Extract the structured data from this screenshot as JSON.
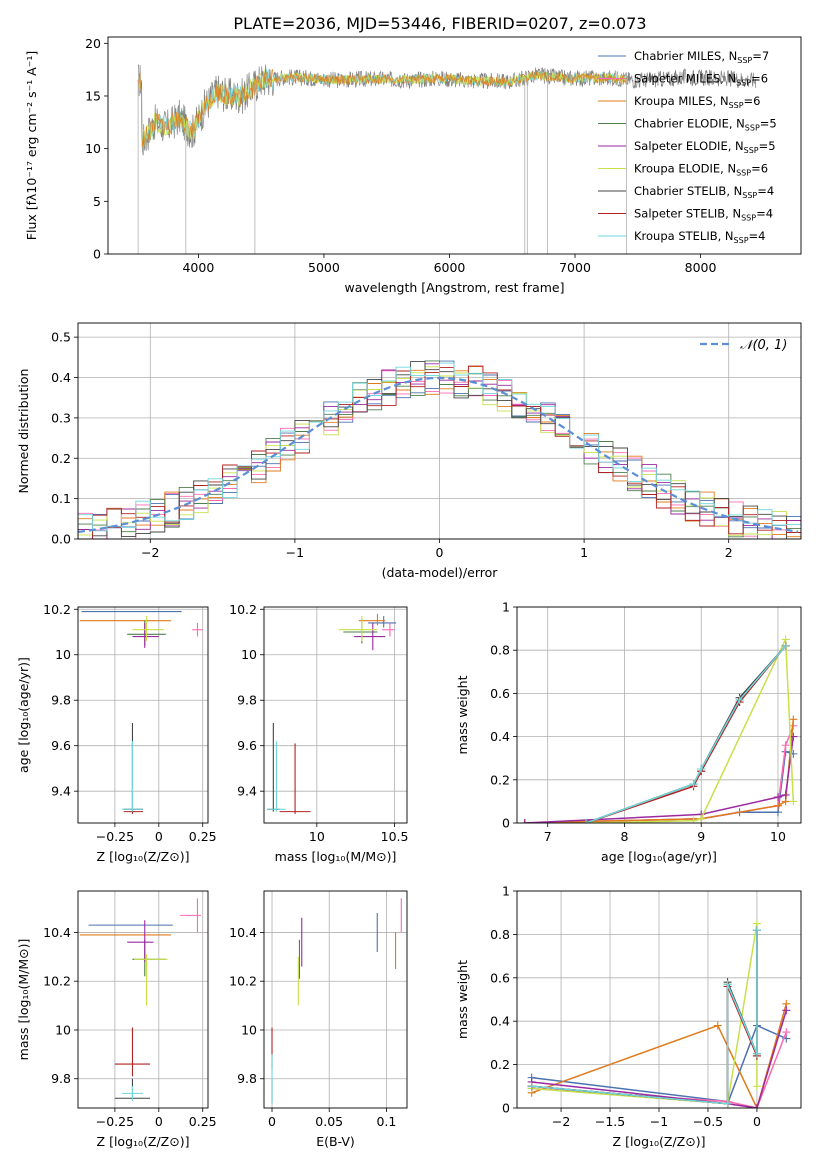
{
  "figure_title": "PLATE=2036, MJD=53446, FIBERID=0207, z=0.073",
  "colors": [
    "#4c72b0",
    "#ff69b4",
    "#e07b1c",
    "#4f7f4f",
    "#9b2aa0",
    "#c8e04a",
    "#444444",
    "#b22222",
    "#6fd6dc"
  ],
  "chart_data": [
    {
      "id": "spectrum",
      "type": "line",
      "title": "PLATE=2036, MJD=53446, FIBERID=0207, z=0.073",
      "xlabel": "wavelength [Angstrom, rest frame]",
      "ylabel": "Flux [fλ10⁻¹⁷ erg cm⁻² s⁻¹ A⁻¹]",
      "xlim": [
        3280,
        8800
      ],
      "ylim": [
        0,
        20.6
      ],
      "xticks": [
        4000,
        5000,
        6000,
        7000,
        8000
      ],
      "yticks": [
        0,
        5,
        10,
        15,
        20
      ],
      "legend_position": "top-right",
      "legend": [
        {
          "label": "Chabrier MILES, N",
          "sub": "SSP",
          "eq": "=7"
        },
        {
          "label": "Salpeter MILES, N",
          "sub": "SSP",
          "eq": "=6"
        },
        {
          "label": "Kroupa MILES, N",
          "sub": "SSP",
          "eq": "=6"
        },
        {
          "label": "Chabrier ELODIE, N",
          "sub": "SSP",
          "eq": "=5"
        },
        {
          "label": "Salpeter ELODIE, N",
          "sub": "SSP",
          "eq": "=5"
        },
        {
          "label": "Kroupa ELODIE, N",
          "sub": "SSP",
          "eq": "=6"
        },
        {
          "label": "Chabrier STELIB, N",
          "sub": "SSP",
          "eq": "=4"
        },
        {
          "label": "Salpeter STELIB, N",
          "sub": "SSP",
          "eq": "=4"
        },
        {
          "label": "Kroupa STELIB, N",
          "sub": "SSP",
          "eq": "=4"
        }
      ],
      "observed_points": [
        [
          3550,
          10.5
        ],
        [
          3650,
          12.5
        ],
        [
          3750,
          12.0
        ],
        [
          3850,
          13.0
        ],
        [
          3950,
          11.5
        ],
        [
          4050,
          14.0
        ],
        [
          4150,
          15.5
        ],
        [
          4250,
          15.0
        ],
        [
          4350,
          15.0
        ],
        [
          4500,
          16.5
        ],
        [
          4700,
          16.8
        ],
        [
          4900,
          16.7
        ],
        [
          5100,
          16.5
        ],
        [
          5300,
          16.6
        ],
        [
          5500,
          16.6
        ],
        [
          5700,
          16.5
        ],
        [
          5900,
          16.7
        ],
        [
          6100,
          16.5
        ],
        [
          6300,
          16.4
        ],
        [
          6500,
          16.4
        ],
        [
          6700,
          17.0
        ],
        [
          6900,
          16.7
        ],
        [
          7100,
          16.7
        ],
        [
          7300,
          16.7
        ],
        [
          7500,
          16.5
        ],
        [
          7700,
          16.6
        ],
        [
          7900,
          16.8
        ],
        [
          8100,
          16.7
        ],
        [
          8300,
          16.6
        ],
        [
          8440,
          16.5
        ]
      ],
      "model_range": [
        3520,
        7420
      ],
      "dips": [
        [
          3520,
          0
        ],
        [
          3900,
          0
        ],
        [
          4450,
          0
        ],
        [
          6600,
          0
        ],
        [
          6620,
          0
        ],
        [
          6780,
          0
        ],
        [
          7410,
          0
        ]
      ]
    },
    {
      "id": "residual-histogram",
      "type": "histogram",
      "xlabel": "(data-model)/error",
      "ylabel": "Normed distribution",
      "xlim": [
        -2.5,
        2.5
      ],
      "ylim": [
        0,
        0.535
      ],
      "xticks": [
        -2,
        -1,
        0,
        1,
        2
      ],
      "yticks": [
        0.0,
        0.1,
        0.2,
        0.3,
        0.4,
        0.5
      ],
      "legend_position": "top-right",
      "legend": [
        {
          "label": "𝒩(0, 1)"
        }
      ],
      "bin_width": 0.1
    },
    {
      "id": "age-vs-Z",
      "type": "scatter",
      "xlabel": "Z [log₁₀(Z/Z⊙)]",
      "ylabel": "age  [log₁₀(age/yr)]",
      "xlim": [
        -0.46,
        0.28
      ],
      "ylim": [
        9.26,
        10.21
      ],
      "xticks": [
        -0.25,
        0.0,
        0.25
      ],
      "yticks": [
        9.4,
        9.6,
        9.8,
        10.0,
        10.2
      ],
      "points": [
        {
          "x": -0.12,
          "y": 10.19,
          "xerr": [
            0.32,
            0.25
          ],
          "yerr": [
            0.0,
            0.0
          ]
        },
        {
          "x": 0.22,
          "y": 10.11,
          "xerr": [
            0.03,
            0.03
          ],
          "yerr": [
            0.03,
            0.03
          ]
        },
        {
          "x": -0.12,
          "y": 10.15,
          "xerr": [
            0.33,
            0.19
          ],
          "yerr": [
            0.0,
            0.0
          ]
        },
        {
          "x": -0.08,
          "y": 10.09,
          "xerr": [
            0.1,
            0.12
          ],
          "yerr": [
            0.05,
            0.06
          ]
        },
        {
          "x": -0.08,
          "y": 10.08,
          "xerr": [
            0.07,
            0.08
          ],
          "yerr": [
            0.05,
            0.06
          ]
        },
        {
          "x": -0.07,
          "y": 10.11,
          "xerr": [
            0.08,
            0.1
          ],
          "yerr": [
            0.05,
            0.06
          ]
        },
        {
          "x": -0.15,
          "y": 9.32,
          "xerr": [
            0.05,
            0.06
          ],
          "yerr": [
            0.01,
            0.38
          ]
        },
        {
          "x": -0.15,
          "y": 9.31,
          "xerr": [
            0.05,
            0.06
          ],
          "yerr": [
            0.01,
            0.3
          ]
        },
        {
          "x": -0.15,
          "y": 9.32,
          "xerr": [
            0.06,
            0.06
          ],
          "yerr": [
            0.01,
            0.3
          ]
        }
      ]
    },
    {
      "id": "age-vs-mass",
      "type": "scatter",
      "xlabel": "mass [log₁₀(M/M⊙)]",
      "ylabel": "",
      "xlim": [
        9.66,
        10.58
      ],
      "ylim": [
        9.26,
        10.21
      ],
      "xticks": [
        10.0,
        10.5
      ],
      "yticks": [
        9.4,
        9.6,
        9.8,
        10.0,
        10.2
      ],
      "points": [
        {
          "x": 10.43,
          "y": 10.14,
          "xerr": [
            0.1,
            0.08
          ],
          "yerr": [
            0.02,
            0.03
          ]
        },
        {
          "x": 10.47,
          "y": 10.11,
          "xerr": [
            0.05,
            0.03
          ],
          "yerr": [
            0.03,
            0.03
          ]
        },
        {
          "x": 10.39,
          "y": 10.15,
          "xerr": [
            0.12,
            0.05
          ],
          "yerr": [
            0.02,
            0.03
          ]
        },
        {
          "x": 10.29,
          "y": 10.1,
          "xerr": [
            0.12,
            0.1
          ],
          "yerr": [
            0.05,
            0.06
          ]
        },
        {
          "x": 10.36,
          "y": 10.08,
          "xerr": [
            0.12,
            0.08
          ],
          "yerr": [
            0.06,
            0.06
          ]
        },
        {
          "x": 10.29,
          "y": 10.11,
          "xerr": [
            0.15,
            0.1
          ],
          "yerr": [
            0.05,
            0.06
          ]
        },
        {
          "x": 9.72,
          "y": 9.32,
          "xerr": [
            0.04,
            0.04
          ],
          "yerr": [
            0.01,
            0.38
          ]
        },
        {
          "x": 9.86,
          "y": 9.31,
          "xerr": [
            0.1,
            0.1
          ],
          "yerr": [
            0.01,
            0.3
          ]
        },
        {
          "x": 9.74,
          "y": 9.32,
          "xerr": [
            0.06,
            0.06
          ],
          "yerr": [
            0.01,
            0.3
          ]
        }
      ]
    },
    {
      "id": "weight-vs-age",
      "type": "line",
      "xlabel": "age  [log₁₀(age/yr)]",
      "ylabel": "mass weight",
      "xlim": [
        6.6,
        10.3
      ],
      "ylim": [
        0,
        1.0
      ],
      "xticks": [
        7,
        8,
        9,
        10
      ],
      "yticks": [
        0.0,
        0.2,
        0.4,
        0.6,
        0.8,
        1.0
      ],
      "series": [
        {
          "x": [
            6.7,
            9.0,
            9.5,
            10.0,
            10.1,
            10.2
          ],
          "y": [
            0.0,
            0.02,
            0.05,
            0.05,
            0.33,
            0.32
          ]
        },
        {
          "x": [
            6.7,
            9.0,
            10.0,
            10.1,
            10.2
          ],
          "y": [
            0.0,
            0.02,
            0.08,
            0.36,
            0.45
          ]
        },
        {
          "x": [
            6.7,
            9.0,
            10.0,
            10.1,
            10.2
          ],
          "y": [
            0.0,
            0.02,
            0.08,
            0.1,
            0.48
          ]
        },
        {
          "x": [
            7.5,
            8.9,
            9.0,
            9.5,
            10.1
          ],
          "y": [
            0.0,
            0.18,
            0.24,
            0.57,
            0.82
          ]
        },
        {
          "x": [
            6.7,
            9.0,
            10.0,
            10.1,
            10.2
          ],
          "y": [
            0.0,
            0.04,
            0.12,
            0.13,
            0.4
          ]
        },
        {
          "x": [
            7.5,
            8.9,
            9.0,
            10.1,
            10.2
          ],
          "y": [
            0.0,
            0.01,
            0.02,
            0.85,
            0.1
          ]
        },
        {
          "x": [
            7.5,
            8.9,
            9.0,
            9.5,
            10.1
          ],
          "y": [
            0.0,
            0.18,
            0.25,
            0.58,
            0.82
          ]
        },
        {
          "x": [
            7.5,
            8.9,
            9.0,
            9.5,
            10.1
          ],
          "y": [
            0.0,
            0.17,
            0.24,
            0.56,
            0.82
          ]
        },
        {
          "x": [
            7.5,
            8.9,
            9.0,
            9.5,
            10.1
          ],
          "y": [
            0.0,
            0.18,
            0.25,
            0.57,
            0.82
          ]
        }
      ]
    },
    {
      "id": "mass-vs-Z",
      "type": "scatter",
      "xlabel": "Z [log₁₀(Z/Z⊙)]",
      "ylabel": "mass [log₁₀(M/M⊙)]",
      "xlim": [
        -0.46,
        0.28
      ],
      "ylim": [
        9.68,
        10.57
      ],
      "xticks": [
        -0.25,
        0.0,
        0.25
      ],
      "yticks": [
        9.8,
        10.0,
        10.2,
        10.4
      ],
      "points": [
        {
          "x": -0.12,
          "y": 10.43,
          "xerr": [
            0.28,
            0.2
          ],
          "yerr": [
            0.0,
            0.0
          ]
        },
        {
          "x": 0.22,
          "y": 10.47,
          "xerr": [
            0.1,
            0.02
          ],
          "yerr": [
            0.07,
            0.07
          ]
        },
        {
          "x": -0.12,
          "y": 10.39,
          "xerr": [
            0.33,
            0.19
          ],
          "yerr": [
            0.0,
            0.0
          ]
        },
        {
          "x": -0.08,
          "y": 10.29,
          "xerr": [
            0.07,
            0.12
          ],
          "yerr": [
            0.07,
            0.08
          ]
        },
        {
          "x": -0.08,
          "y": 10.36,
          "xerr": [
            0.1,
            0.05
          ],
          "yerr": [
            0.08,
            0.09
          ]
        },
        {
          "x": -0.07,
          "y": 10.29,
          "xerr": [
            0.07,
            0.12
          ],
          "yerr": [
            0.19,
            0.02
          ]
        },
        {
          "x": -0.15,
          "y": 9.72,
          "xerr": [
            0.1,
            0.1
          ],
          "yerr": [
            0.01,
            0.08
          ]
        },
        {
          "x": -0.15,
          "y": 9.86,
          "xerr": [
            0.1,
            0.1
          ],
          "yerr": [
            0.05,
            0.15
          ]
        },
        {
          "x": -0.15,
          "y": 9.74,
          "xerr": [
            0.06,
            0.06
          ],
          "yerr": [
            0.03,
            0.03
          ]
        }
      ]
    },
    {
      "id": "mass-vs-EBV",
      "type": "scatter",
      "xlabel": "E(B-V)",
      "ylabel": "",
      "xlim": [
        -0.007,
        0.118
      ],
      "ylim": [
        9.68,
        10.57
      ],
      "xticks": [
        0.0,
        0.05,
        0.1
      ],
      "yticks": [
        9.8,
        10.0,
        10.2,
        10.4
      ],
      "points": [
        {
          "x": 0.092,
          "y": 10.43,
          "xerr": [
            0,
            0
          ],
          "yerr": [
            0.11,
            0.05
          ]
        },
        {
          "x": 0.113,
          "y": 10.47,
          "xerr": [
            0,
            0
          ],
          "yerr": [
            0.07,
            0.07
          ]
        },
        {
          "x": 0.108,
          "y": 10.33,
          "xerr": [
            0,
            0
          ],
          "yerr": [
            0.08,
            0.07
          ]
        },
        {
          "x": 0.024,
          "y": 10.29,
          "xerr": [
            0,
            0
          ],
          "yerr": [
            0.08,
            0.08
          ]
        },
        {
          "x": 0.026,
          "y": 10.36,
          "xerr": [
            0,
            0
          ],
          "yerr": [
            0.1,
            0.1
          ]
        },
        {
          "x": 0.023,
          "y": 10.24,
          "xerr": [
            0,
            0
          ],
          "yerr": [
            0.14,
            0.06
          ]
        },
        {
          "x": 0.0,
          "y": 9.72,
          "xerr": [
            0,
            0
          ],
          "yerr": [
            0.02,
            0.08
          ]
        },
        {
          "x": 0.0,
          "y": 9.93,
          "xerr": [
            0,
            0
          ],
          "yerr": [
            0.09,
            0.08
          ]
        },
        {
          "x": 0.0,
          "y": 9.8,
          "xerr": [
            0,
            0
          ],
          "yerr": [
            0.1,
            0.1
          ]
        }
      ]
    },
    {
      "id": "weight-vs-Z",
      "type": "line",
      "xlabel": "Z [log₁₀(Z/Z⊙)]",
      "ylabel": "mass weight",
      "xlim": [
        -2.45,
        0.45
      ],
      "ylim": [
        0,
        1.0
      ],
      "xticks": [
        -2.0,
        -1.5,
        -1.0,
        -0.5,
        0.0
      ],
      "yticks": [
        0.0,
        0.2,
        0.4,
        0.6,
        0.8,
        1.0
      ],
      "series": [
        {
          "x": [
            -2.3,
            -0.3,
            -0.3,
            0.0,
            0.3
          ],
          "y": [
            0.14,
            0.03,
            0.02,
            0.38,
            0.32
          ]
        },
        {
          "x": [
            -2.3,
            -0.3,
            0.0,
            0.3
          ],
          "y": [
            0.09,
            0.03,
            0.0,
            0.35
          ]
        },
        {
          "x": [
            -2.3,
            -0.4,
            0.0,
            0.3
          ],
          "y": [
            0.07,
            0.38,
            0.0,
            0.48
          ]
        },
        {
          "x": [
            -2.3,
            -0.3,
            -0.3,
            0.0,
            0.0
          ],
          "y": [
            0.1,
            0.02,
            0.57,
            0.24,
            0.82
          ]
        },
        {
          "x": [
            -2.3,
            -0.3,
            0.0,
            0.3
          ],
          "y": [
            0.12,
            0.02,
            0.0,
            0.45
          ]
        },
        {
          "x": [
            -2.3,
            -0.3,
            0.0,
            0.0
          ],
          "y": [
            0.09,
            0.02,
            0.85,
            0.1
          ]
        },
        {
          "x": [
            -2.3,
            -0.3,
            -0.3,
            0.0,
            0.0
          ],
          "y": [
            0.1,
            0.02,
            0.58,
            0.25,
            0.82
          ]
        },
        {
          "x": [
            -2.3,
            -0.3,
            -0.3,
            0.0,
            0.0
          ],
          "y": [
            0.1,
            0.02,
            0.56,
            0.24,
            0.82
          ]
        },
        {
          "x": [
            -2.3,
            -0.3,
            -0.3,
            0.0,
            0.0
          ],
          "y": [
            0.1,
            0.02,
            0.57,
            0.25,
            0.82
          ]
        }
      ]
    }
  ]
}
